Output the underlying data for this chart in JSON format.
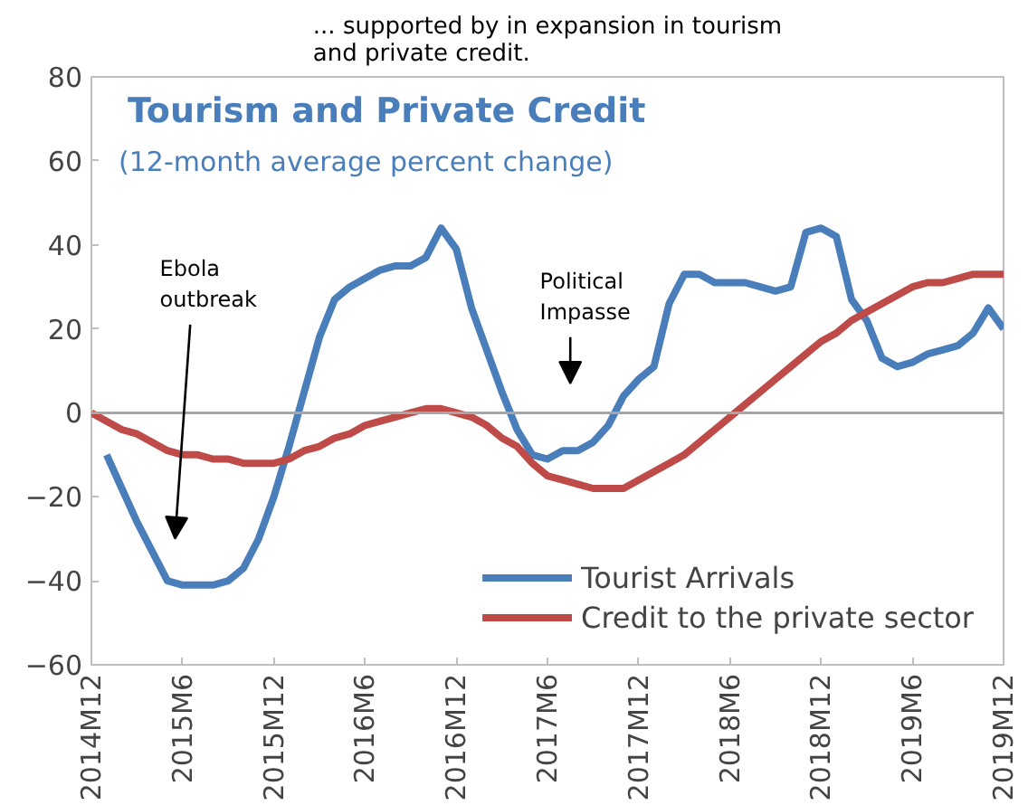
{
  "chart_data": {
    "type": "line",
    "title": "... supported by in expansion in tourism\nand private credit.",
    "subtitle": "Tourism and Private Credit",
    "annotations": [
      "(12-month average percent change)",
      "Ebola\noutbreak",
      "Political\nImpasse"
    ],
    "categories": [
      "2014M12",
      null,
      null,
      null,
      null,
      null,
      "2015M6",
      null,
      null,
      null,
      null,
      null,
      "2015M12",
      null,
      null,
      null,
      null,
      null,
      "2016M6",
      null,
      null,
      null,
      null,
      null,
      "2016M12",
      null,
      null,
      null,
      null,
      null,
      "2017M6",
      null,
      null,
      null,
      null,
      null,
      "2017M12",
      null,
      null,
      null,
      null,
      null,
      "2018M6",
      null,
      null,
      null,
      null,
      null,
      "2018M12",
      null,
      null,
      null,
      null,
      null,
      "2019M6",
      null,
      null,
      null,
      null,
      null,
      "2019M12"
    ],
    "ylim": [
      -60,
      80
    ],
    "yticks": [
      -60,
      -40,
      -20,
      0,
      20,
      40,
      60,
      80
    ],
    "grid": false,
    "legend": "bottom right",
    "ref_lines": [
      {
        "axis": "y",
        "value": 0,
        "color": "#a6a6a6"
      }
    ],
    "series": [
      {
        "name": "Tourist Arrivals",
        "color": "#4a7ebb",
        "values": [
          null,
          -10,
          -18,
          -26,
          -33,
          -40,
          -41,
          -41,
          -41,
          -40,
          -37,
          -30,
          -20,
          -8,
          5,
          18,
          27,
          30,
          32,
          34,
          35,
          35,
          37,
          44,
          39,
          25,
          15,
          5,
          -4,
          -10,
          -11,
          -9,
          -9,
          -7,
          -3,
          4,
          8,
          11,
          26,
          33,
          33,
          31,
          31,
          31,
          30,
          29,
          30,
          43,
          44,
          42,
          27,
          22,
          13,
          11,
          12,
          14,
          15,
          16,
          19,
          25,
          20
        ]
      },
      {
        "name": "Credit to the private sector",
        "color": "#be4b48",
        "values": [
          0,
          -2,
          -4,
          -5,
          -7,
          -9,
          -10,
          -10,
          -11,
          -11,
          -12,
          -12,
          -12,
          -11,
          -9,
          -8,
          -6,
          -5,
          -3,
          -2,
          -1,
          0,
          1,
          1,
          0,
          -1,
          -3,
          -6,
          -8,
          -12,
          -15,
          -16,
          -17,
          -18,
          -18,
          -18,
          -16,
          -14,
          -12,
          -10,
          -7,
          -4,
          -1,
          2,
          5,
          8,
          11,
          14,
          17,
          19,
          22,
          24,
          26,
          28,
          30,
          31,
          31,
          32,
          33,
          33,
          33
        ]
      }
    ]
  }
}
